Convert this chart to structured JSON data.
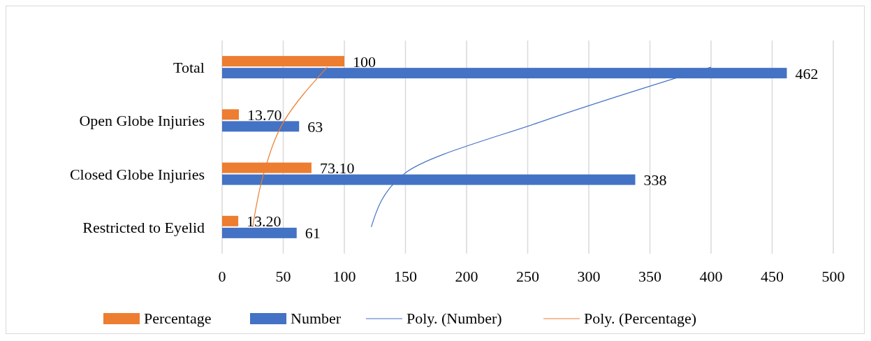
{
  "chart_data": {
    "type": "bar",
    "orientation": "horizontal",
    "categories": [
      "Total",
      "Open Globe Injuries",
      "Closed Globe Injuries",
      "Restricted to Eyelid"
    ],
    "series": [
      {
        "name": "Percentage",
        "color": "#ed7d31",
        "values": [
          100,
          13.7,
          73.1,
          13.2
        ],
        "value_labels": [
          "100",
          "13.70",
          "73.10",
          "13.20"
        ]
      },
      {
        "name": "Number",
        "color": "#4472c4",
        "values": [
          462,
          63,
          338,
          61
        ],
        "value_labels": [
          "462",
          "63",
          "338",
          "61"
        ]
      },
      {
        "name": "Poly. (Number)",
        "type": "line",
        "color": "#4472c4",
        "values": [
          400,
          264,
          149,
          122
        ]
      },
      {
        "name": "Poly. (Percentage)",
        "type": "line",
        "color": "#ed7d31",
        "values": [
          86,
          51,
          34,
          25
        ]
      }
    ],
    "xlim": [
      0,
      500
    ],
    "xticks": [
      0,
      50,
      100,
      150,
      200,
      250,
      300,
      350,
      400,
      450,
      500
    ],
    "grid": "x",
    "legend": "bottom",
    "marker": "none",
    "line_style": "solid"
  }
}
